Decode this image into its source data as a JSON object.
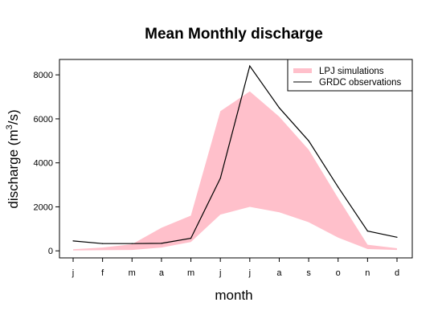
{
  "chart_data": {
    "type": "area",
    "title": "Mean Monthly discharge",
    "xlabel": "month",
    "ylabel": "discharge (m",
    "ylabel_sup": "3",
    "ylabel_suffix": "/s)",
    "categories": [
      "j",
      "f",
      "m",
      "a",
      "m",
      "j",
      "j",
      "a",
      "s",
      "o",
      "n",
      "d"
    ],
    "ylim": [
      0,
      8700
    ],
    "yticks": [
      0,
      2000,
      4000,
      6000,
      8000
    ],
    "ytick_labels": [
      "0",
      "2000",
      "4000",
      "6000",
      "8000"
    ],
    "grid": false,
    "legend_position": "top-right",
    "series": [
      {
        "name": "LPJ simulations",
        "kind": "band",
        "color": "#ffc0cb",
        "lower": [
          20,
          30,
          40,
          150,
          400,
          1650,
          2000,
          1750,
          1300,
          600,
          80,
          40
        ],
        "upper": [
          70,
          150,
          300,
          1050,
          1600,
          6350,
          7250,
          6100,
          4600,
          2400,
          280,
          120
        ]
      },
      {
        "name": "GRDC observations",
        "kind": "line",
        "color": "#000000",
        "values": [
          450,
          330,
          330,
          340,
          570,
          3300,
          8400,
          6500,
          5000,
          2900,
          900,
          620
        ]
      }
    ]
  }
}
